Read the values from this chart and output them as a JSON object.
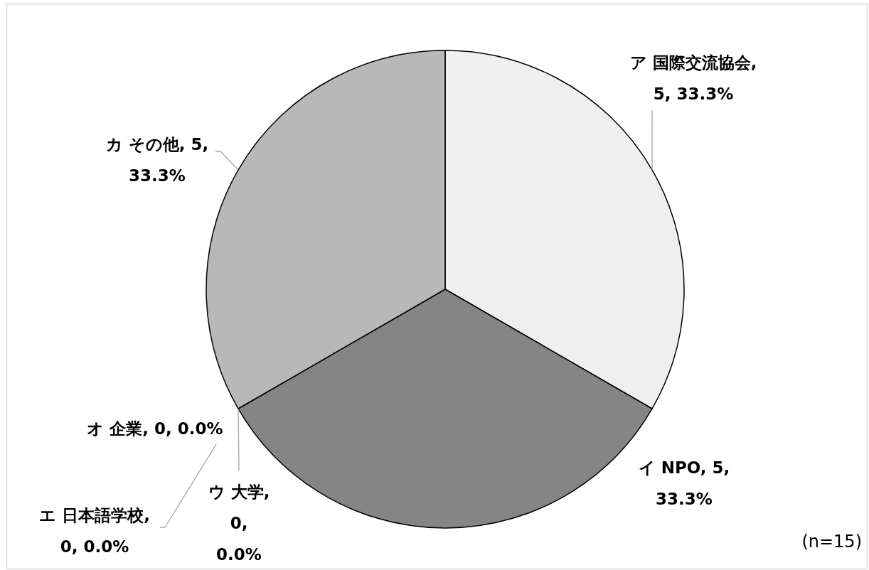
{
  "chart_data": {
    "type": "pie",
    "categories": [
      "ア 国際交流協会",
      "イ NPO",
      "ウ 大学",
      "エ 日本語学校",
      "オ 企業",
      "カ その他"
    ],
    "values": [
      5,
      5,
      0,
      0,
      0,
      5
    ],
    "value_labels": [
      ", 5, 33.3%",
      ", 5, 33.3%",
      ", 0, 0.0%",
      ", 0, 0.0%",
      ", 0, 0.0%",
      ", 5, 33.3%"
    ],
    "colors": [
      "#efefef",
      "#858585",
      null,
      null,
      null,
      "#b8b8b8"
    ],
    "annotations": [
      "(n=15)"
    ]
  }
}
